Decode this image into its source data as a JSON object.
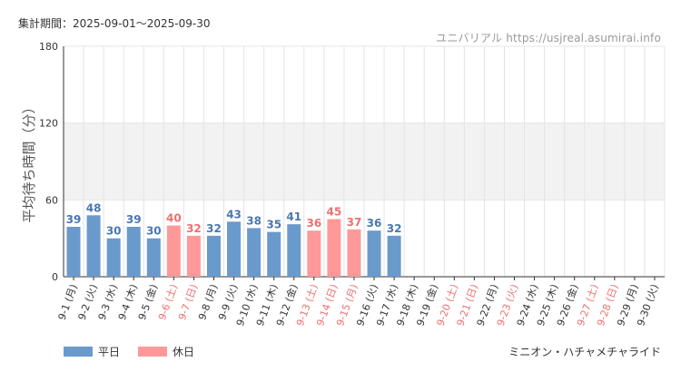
{
  "header": {
    "period_label": "集計期間：",
    "period_range": "2025-09-01～2025-09-30",
    "source": "ユニバリアル https://usjreal.asumirai.info"
  },
  "legend": {
    "weekday_label": "平日",
    "holiday_label": "休日"
  },
  "attraction_name": "ミニオン・ハチャメチャライド",
  "colors": {
    "weekday": "#6a9acb",
    "holiday": "#ff9999",
    "weekday_text": "#4a78b0",
    "holiday_text": "#ee7070",
    "band": "#f2f2f2",
    "grid": "#e4e4e4"
  },
  "chart_data": {
    "type": "bar",
    "ylabel": "平均待ち時間（分）",
    "xlabel": "",
    "ylim": [
      0,
      180
    ],
    "yticks": [
      0,
      60,
      120,
      180
    ],
    "band": [
      60,
      120
    ],
    "categories": [
      "9-1 (月)",
      "9-2 (火)",
      "9-3 (水)",
      "9-4 (木)",
      "9-5 (金)",
      "9-6 (土)",
      "9-7 (日)",
      "9-8 (月)",
      "9-9 (火)",
      "9-10 (水)",
      "9-11 (木)",
      "9-12 (金)",
      "9-13 (土)",
      "9-14 (日)",
      "9-15 (月)",
      "9-16 (火)",
      "9-17 (水)",
      "9-18 (木)",
      "9-19 (金)",
      "9-20 (土)",
      "9-21 (日)",
      "9-22 (月)",
      "9-23 (火)",
      "9-24 (水)",
      "9-25 (木)",
      "9-26 (金)",
      "9-27 (土)",
      "9-28 (日)",
      "9-29 (月)",
      "9-30 (火)"
    ],
    "values": [
      39,
      48,
      30,
      39,
      30,
      40,
      32,
      32,
      43,
      38,
      35,
      41,
      36,
      45,
      37,
      36,
      32,
      null,
      null,
      null,
      null,
      null,
      null,
      null,
      null,
      null,
      null,
      null,
      null,
      null
    ],
    "holiday": [
      false,
      false,
      false,
      false,
      false,
      true,
      true,
      false,
      false,
      false,
      false,
      false,
      true,
      true,
      true,
      false,
      false,
      false,
      false,
      true,
      true,
      false,
      true,
      false,
      false,
      false,
      true,
      true,
      false,
      false
    ]
  }
}
